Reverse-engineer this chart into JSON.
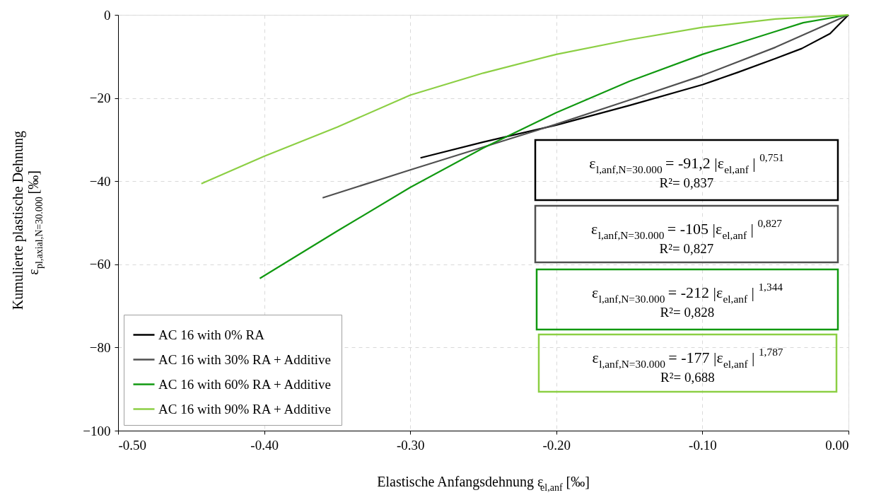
{
  "chart_data": {
    "type": "line",
    "xlabel": "Elastische Anfangsdehnung ε$_{el,anf}$ [‰]",
    "ylabel": "Kumulierte plastische Dehnung\nε$_{pl,axial,N=30.000}$ [‰]",
    "xlim": [
      -0.5,
      0
    ],
    "ylim": [
      -100,
      0
    ],
    "xticks": [
      {
        "value": -0.5,
        "label": "-0.50"
      },
      {
        "value": -0.4,
        "label": "-0.40"
      },
      {
        "value": -0.3,
        "label": "-0.30"
      },
      {
        "value": -0.2,
        "label": "-0.20"
      },
      {
        "value": -0.1,
        "label": "-0.10"
      },
      {
        "value": 0,
        "label": "0.00"
      }
    ],
    "yticks": [
      -100,
      -80,
      -60,
      -40,
      -20,
      0
    ],
    "grid": true,
    "legend": "bottom left",
    "line_style": "solid",
    "marker": "none",
    "series": [
      {
        "name": "AC 16 with 0% RA",
        "color": "#000000",
        "x": [
          -0.293,
          -0.25,
          -0.2,
          -0.15,
          -0.1,
          -0.0755,
          -0.05,
          -0.032,
          -0.0126,
          0
        ],
        "values": [
          -34.4,
          -30.6,
          -26.5,
          -21.8,
          -16.8,
          -13.8,
          -10.5,
          -8.1,
          -4.5,
          0
        ]
      },
      {
        "name": "AC 16 with 30% RA + Additive",
        "color": "#505050",
        "x": [
          -0.36,
          -0.3,
          -0.25,
          -0.2,
          -0.15,
          -0.1,
          -0.05,
          0
        ],
        "values": [
          -44,
          -37.3,
          -31.8,
          -26.3,
          -20.5,
          -14.6,
          -7.8,
          0
        ]
      },
      {
        "name": "AC 16 with 60% RA + Additive",
        "color": "#119911",
        "x": [
          -0.403,
          -0.35,
          -0.3,
          -0.25,
          -0.2,
          -0.15,
          -0.1,
          -0.05,
          -0.031,
          0
        ],
        "values": [
          -63.4,
          -52,
          -41.5,
          -32,
          -23.5,
          -16,
          -9.5,
          -4,
          -1.9,
          0
        ]
      },
      {
        "name": "AC 16 with 90% RA + Additive",
        "color": "#8ccf44",
        "x": [
          -0.443,
          -0.4,
          -0.35,
          -0.3,
          -0.25,
          -0.2,
          -0.15,
          -0.1,
          -0.05,
          0
        ],
        "values": [
          -40.6,
          -34,
          -27,
          -19.3,
          -14,
          -9.5,
          -6,
          -3,
          -1,
          0
        ]
      }
    ],
    "annotations": [
      "ε$_{l,anf,N=30.000}$ = -91,2 |ε$_{el,anf}$ | $^{0,751}$",
      "R²= 0,837",
      "ε$_{l,anf,N=30.000}$ = -105 |ε$_{el,anf}$ | $^{0,827}$",
      "R²= 0,827",
      "ε$_{l,anf,N=30.000}$ = -212 |ε$_{el,anf}$ | $^{1,344}$",
      "R²= 0,828",
      "ε$_{l,anf,N=30.000}$ = -177 |ε$_{el,anf}$ | $^{1,787}$",
      "R²= 0,688"
    ]
  }
}
